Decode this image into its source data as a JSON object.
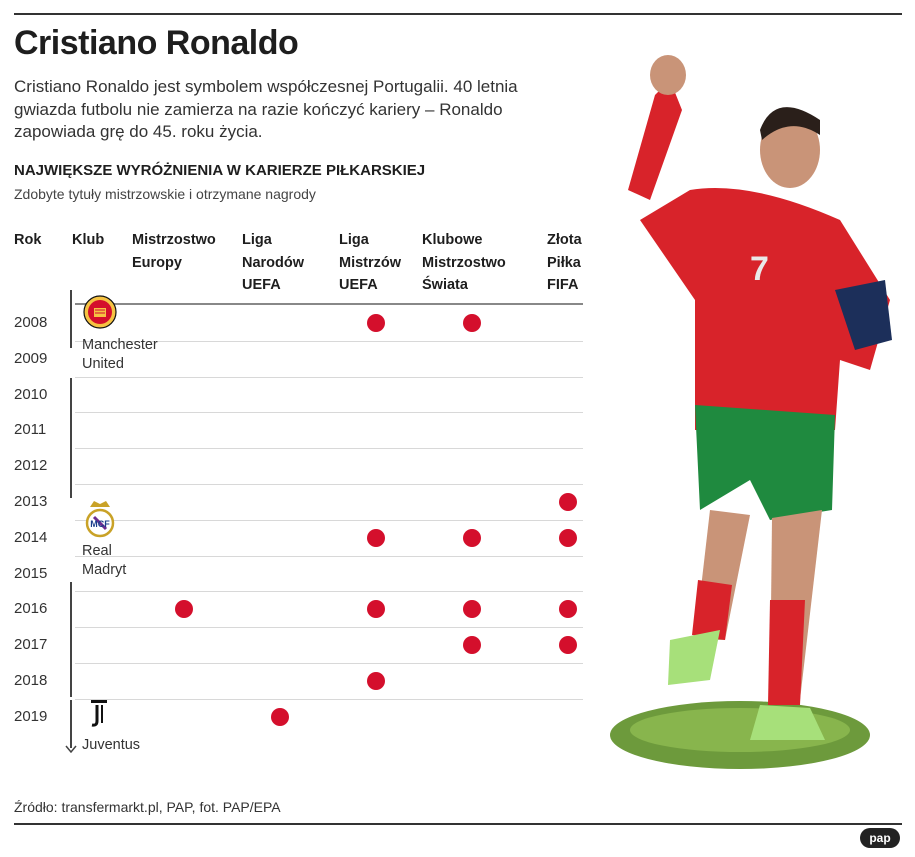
{
  "header": {
    "title": "Cristiano Ronaldo",
    "lead": "Cristiano Ronaldo jest symbolem współczesnej Portugalii.  40 letnia gwiazda futbolu nie zamierza na razie kończyć kariery – Ronaldo zapowiada grę do 45. roku życia.",
    "subtitle": "NAJWIĘKSZE WYRÓŻNIENIA W KARIERZE PIŁKARSKIEJ",
    "subnote": "Zdobyte tytuły mistrzowskie i otrzymane nagrody"
  },
  "columns": {
    "rok": "Rok",
    "klub": "Klub",
    "euro": [
      "Mistrzostwo",
      "Europy"
    ],
    "nations": [
      "Liga",
      "Narodów",
      "UEFA"
    ],
    "ucl": [
      "Liga",
      "Mistrzów",
      "UEFA"
    ],
    "cwc": [
      "Klubowe",
      "Mistrzostwo",
      "Świata"
    ],
    "ballon": [
      "Złota",
      "Piłka",
      "FIFA"
    ]
  },
  "clubs": [
    {
      "name": [
        "Manchester",
        "United"
      ],
      "icon": "manchester-united-crest-icon",
      "color": "#d40f2c"
    },
    {
      "name": [
        "Real",
        "Madryt"
      ],
      "icon": "real-madrid-crest-icon",
      "color": "#c9a227"
    },
    {
      "name": [
        "Juventus"
      ],
      "icon": "juventus-logo-icon",
      "color": "#111111"
    }
  ],
  "footer": {
    "source": "Źródło: transfermarkt.pl, PAP, fot. PAP/EPA",
    "logo_text": "pap"
  },
  "colors": {
    "dot": "#d40f2c",
    "rule": "#333333"
  },
  "chart_data": {
    "type": "table",
    "title": "NAJWIĘKSZE WYRÓŻNIENIA W KARIERZE PIŁKARSKIEJ",
    "years": [
      "2008",
      "2009",
      "2010",
      "2011",
      "2012",
      "2013",
      "2014",
      "2015",
      "2016",
      "2017",
      "2018",
      "2019"
    ],
    "categories": [
      "Mistrzostwo Europy",
      "Liga Narodów UEFA",
      "Liga Mistrzów UEFA",
      "Klubowe Mistrzostwo Świata",
      "Złota Piłka FIFA"
    ],
    "awards": [
      {
        "year": "2008",
        "categories": [
          "Liga Mistrzów UEFA",
          "Klubowe Mistrzostwo Świata"
        ]
      },
      {
        "year": "2013",
        "categories": [
          "Złota Piłka FIFA"
        ]
      },
      {
        "year": "2014",
        "categories": [
          "Liga Mistrzów UEFA",
          "Klubowe Mistrzostwo Świata",
          "Złota Piłka FIFA"
        ]
      },
      {
        "year": "2016",
        "categories": [
          "Mistrzostwo Europy",
          "Liga Mistrzów UEFA",
          "Klubowe Mistrzostwo Świata",
          "Złota Piłka FIFA"
        ]
      },
      {
        "year": "2017",
        "categories": [
          "Klubowe Mistrzostwo Świata",
          "Złota Piłka FIFA"
        ]
      },
      {
        "year": "2018",
        "categories": [
          "Liga Mistrzów UEFA"
        ]
      },
      {
        "year": "2019",
        "categories": [
          "Liga Narodów UEFA"
        ]
      }
    ],
    "clubs_timeline": [
      {
        "club": "Manchester United",
        "from": "2008",
        "to": "2009"
      },
      {
        "club": "Real Madryt",
        "from": "2010",
        "to": "2018"
      },
      {
        "club": "Juventus",
        "from": "2019",
        "to": "2019"
      }
    ]
  }
}
